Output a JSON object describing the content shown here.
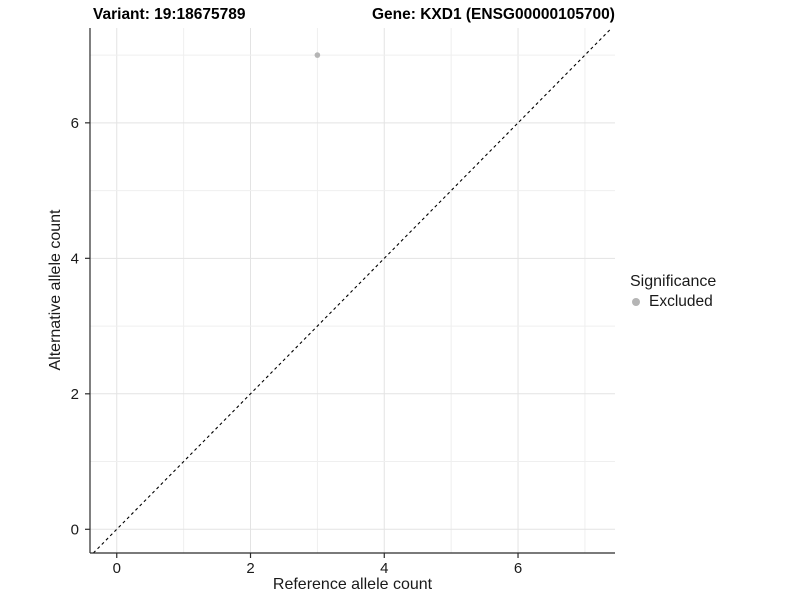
{
  "chart_data": {
    "type": "scatter",
    "title_variant": "Variant: 19:18675789",
    "title_gene": "Gene: KXD1 (ENSG00000105700)",
    "xlabel": "Reference allele count",
    "ylabel": "Alternative allele count",
    "xlim": [
      -0.4,
      7.45
    ],
    "ylim": [
      -0.35,
      7.4
    ],
    "x_ticks": [
      "0",
      "2",
      "4",
      "6"
    ],
    "y_ticks": [
      "0",
      "2",
      "4",
      "6"
    ],
    "x_tick_values": [
      0,
      2,
      4,
      6
    ],
    "y_tick_values": [
      0,
      2,
      4,
      6
    ],
    "grid_x": [
      0,
      1,
      2,
      3,
      4,
      5,
      6,
      7
    ],
    "grid_y": [
      0,
      1,
      2,
      3,
      4,
      5,
      6,
      7
    ],
    "grid": "on",
    "points": [
      {
        "x": 3,
        "y": 7,
        "series": "Excluded"
      }
    ],
    "reference_line": {
      "kind": "identity",
      "slope": 1,
      "intercept": 0,
      "style": "dashed"
    },
    "legend": {
      "title": "Significance",
      "position": "right",
      "items": [
        {
          "label": "Excluded",
          "color": "#b5b5b5"
        }
      ]
    },
    "colors": {
      "point": "#b5b5b5",
      "grid_major": "#e3e3e3",
      "grid_minor": "#efefef",
      "axis_line": "#2b2b2b",
      "tick_mark": "#2b2b2b",
      "dashed_line": "#000000",
      "background": "#ffffff",
      "text": "#1a1a1a"
    }
  }
}
